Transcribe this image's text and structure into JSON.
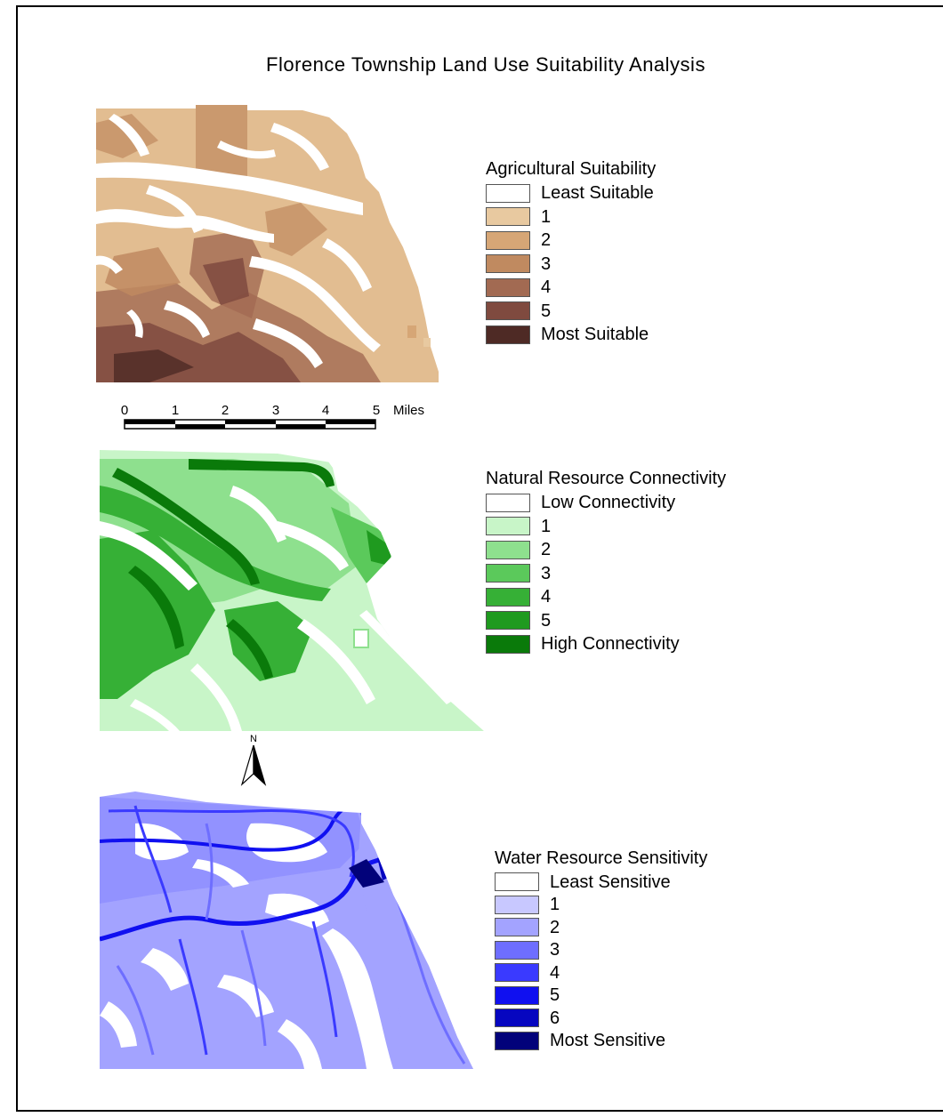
{
  "title": "Florence Township Land Use Suitability Analysis",
  "legends": {
    "agricultural": {
      "title": "Agricultural Suitability",
      "items": [
        {
          "label": "Least Suitable",
          "color": "#ffffff"
        },
        {
          "label": "1",
          "color": "#e8c9a0"
        },
        {
          "label": "2",
          "color": "#d6a676"
        },
        {
          "label": "3",
          "color": "#c08a60"
        },
        {
          "label": "4",
          "color": "#a26a52"
        },
        {
          "label": "5",
          "color": "#7f4a3f"
        },
        {
          "label": "Most Suitable",
          "color": "#4e2a25"
        }
      ]
    },
    "natural": {
      "title": "Natural Resource Connectivity",
      "items": [
        {
          "label": "Low Connectivity",
          "color": "#ffffff"
        },
        {
          "label": "1",
          "color": "#c8f5c8"
        },
        {
          "label": "2",
          "color": "#8ee08e"
        },
        {
          "label": "3",
          "color": "#5bc95b"
        },
        {
          "label": "4",
          "color": "#36b036"
        },
        {
          "label": "5",
          "color": "#1f9a1f"
        },
        {
          "label": "High Connectivity",
          "color": "#0a7a0a"
        }
      ]
    },
    "water": {
      "title": "Water Resource Sensitivity",
      "items": [
        {
          "label": "Least Sensitive",
          "color": "#ffffff"
        },
        {
          "label": "1",
          "color": "#c8c8ff"
        },
        {
          "label": "2",
          "color": "#a3a3ff"
        },
        {
          "label": "3",
          "color": "#6e6eff"
        },
        {
          "label": "4",
          "color": "#3a3aff"
        },
        {
          "label": "5",
          "color": "#1010f0"
        },
        {
          "label": "6",
          "color": "#0606c0"
        },
        {
          "label": "Most Sensitive",
          "color": "#02027a"
        }
      ]
    }
  },
  "scalebar": {
    "ticks": [
      "0",
      "1",
      "2",
      "3",
      "4",
      "5"
    ],
    "unit": "Miles"
  },
  "north_arrow": {
    "label": "N",
    "icon": "north-arrow-icon"
  }
}
